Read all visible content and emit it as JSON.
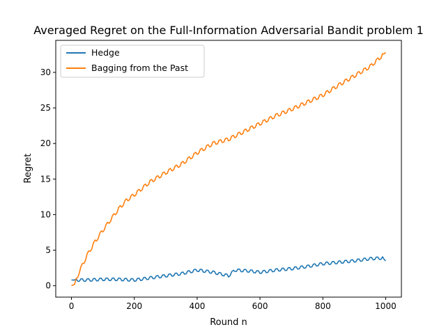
{
  "chart_data": {
    "type": "line",
    "title": "Averaged Regret on the Full-Information Adversarial Bandit problem 1",
    "xlabel": "Round n",
    "ylabel": "Regret",
    "xlim": [
      -50,
      1050
    ],
    "ylim": [
      -1.6,
      34.5
    ],
    "xticks": [
      0,
      200,
      400,
      600,
      800,
      1000
    ],
    "yticks": [
      0,
      5,
      10,
      15,
      20,
      25,
      30
    ],
    "legend_position": "upper-left",
    "grid": false,
    "series": [
      {
        "name": "Hedge",
        "color": "#1f77b4",
        "x": [
          0,
          50,
          100,
          150,
          200,
          250,
          300,
          350,
          400,
          450,
          500,
          520,
          560,
          600,
          650,
          700,
          750,
          800,
          850,
          900,
          950,
          990,
          1000
        ],
        "y": [
          0.8,
          0.8,
          0.9,
          0.9,
          0.8,
          1.1,
          1.4,
          1.7,
          2.2,
          1.9,
          1.4,
          2.2,
          2.1,
          1.9,
          2.2,
          2.4,
          2.7,
          3.1,
          3.3,
          3.5,
          3.8,
          3.9,
          3.5
        ],
        "oscillation": 0.35
      },
      {
        "name": "Bagging from the Past",
        "color": "#ff7f0e",
        "x": [
          0,
          10,
          25,
          50,
          75,
          100,
          125,
          150,
          175,
          200,
          250,
          300,
          350,
          400,
          450,
          500,
          550,
          600,
          650,
          700,
          750,
          800,
          850,
          900,
          950,
          990,
          1000
        ],
        "y": [
          0.0,
          0.2,
          2.0,
          4.3,
          6.2,
          7.8,
          9.3,
          10.8,
          12.0,
          12.8,
          14.6,
          15.9,
          17.1,
          18.7,
          20.0,
          20.6,
          21.7,
          22.8,
          23.9,
          24.8,
          25.8,
          26.8,
          28.2,
          29.5,
          30.8,
          32.4,
          32.8
        ],
        "oscillation": 0.45
      }
    ]
  }
}
